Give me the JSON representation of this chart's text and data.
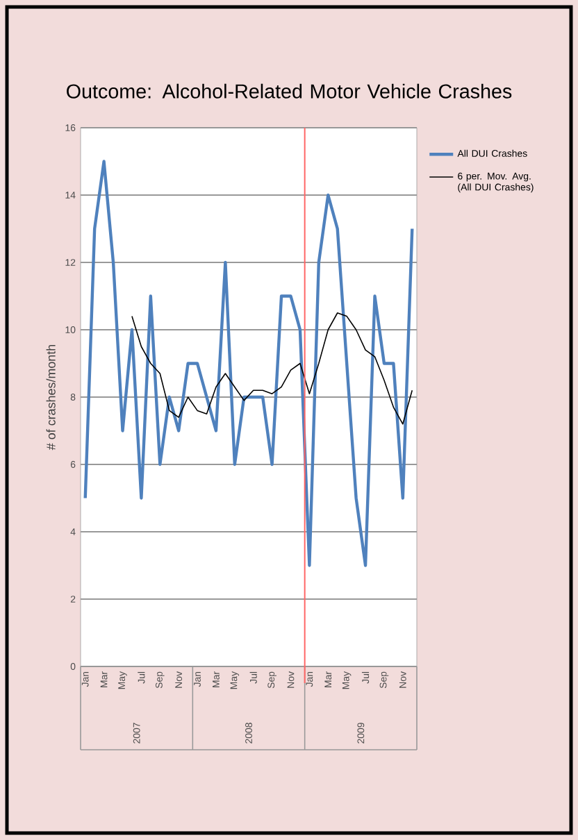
{
  "chart_data": {
    "type": "line",
    "title": "Outcome: Alcohol-Related Motor Vehicle Crashes",
    "ylabel": "# of crashes/month",
    "categories": [
      "Jan",
      null,
      "Mar",
      null,
      "May",
      null,
      "Jul",
      null,
      "Sep",
      null,
      "Nov",
      null,
      "Jan",
      null,
      "Mar",
      null,
      "May",
      null,
      "Jul",
      null,
      "Sep",
      null,
      "Nov",
      null,
      "Jan",
      null,
      "Mar",
      null,
      "May",
      null,
      "Jul",
      null,
      "Sep",
      null,
      "Nov",
      null
    ],
    "annotations": [
      "2007",
      "2008",
      "2009"
    ],
    "series": [
      {
        "name": "All DUI Crashes",
        "color": "#4f81bd",
        "values": [
          5,
          13,
          15,
          12,
          7,
          10,
          5,
          11,
          6,
          8,
          7,
          9,
          9,
          8,
          7,
          12,
          6,
          8,
          8,
          8,
          6,
          11,
          11,
          10,
          3,
          12,
          14,
          13,
          9,
          5,
          3,
          11,
          9,
          9,
          5,
          13
        ]
      },
      {
        "name": "6 per. Mov. Avg. (All DUI Crashes)",
        "color": "#000000",
        "values": [
          null,
          null,
          null,
          null,
          null,
          10.4,
          9.5,
          9.0,
          8.7,
          7.6,
          7.4,
          8.0,
          7.6,
          7.5,
          8.3,
          8.7,
          8.3,
          7.9,
          8.2,
          8.2,
          8.1,
          8.3,
          8.8,
          9.0,
          8.1,
          9.0,
          10.0,
          10.5,
          10.4,
          10.0,
          9.4,
          9.2,
          8.5,
          7.7,
          7.2,
          8.2
        ]
      }
    ],
    "ylim": [
      0,
      16
    ],
    "yticks": [
      0,
      2,
      4,
      6,
      8,
      10,
      12,
      14,
      16
    ],
    "grid": "y",
    "legend": "right",
    "marker": "none",
    "line_style": "solid"
  }
}
